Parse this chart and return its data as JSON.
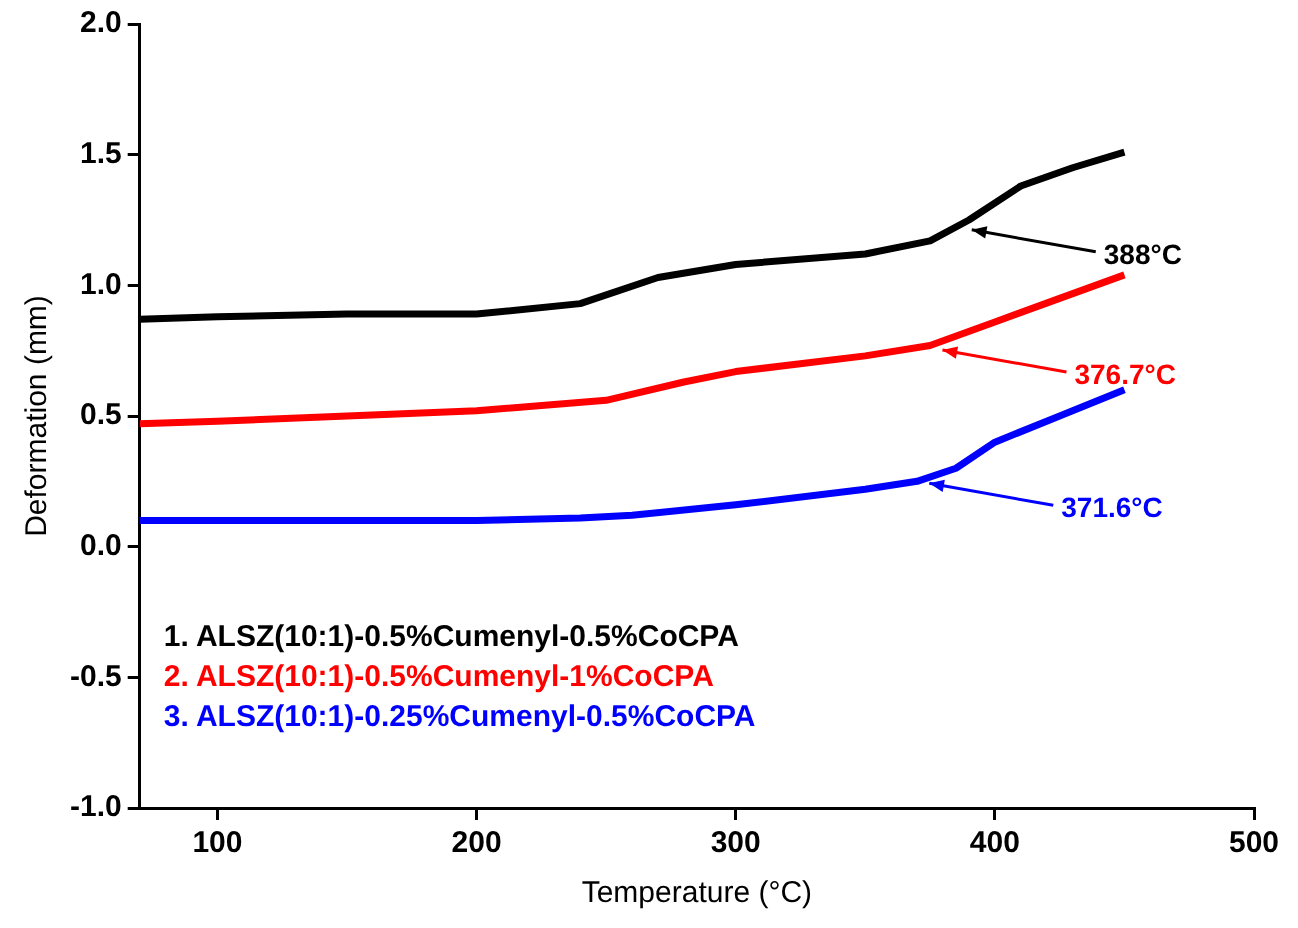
{
  "chart_data": {
    "type": "line",
    "xlabel": "Temperature (°C)",
    "ylabel": "Deformation (mm)",
    "xlim": [
      70,
      500
    ],
    "xticks": [
      100,
      200,
      300,
      400,
      500
    ],
    "ylim": [
      -1.0,
      2.0
    ],
    "yticks": [
      {
        "value": -1,
        "label": "-1.0"
      },
      {
        "value": -0.5,
        "label": "-0.5"
      },
      {
        "value": 0,
        "label": "0.0"
      },
      {
        "value": 0.5,
        "label": "0.5"
      },
      {
        "value": 1,
        "label": "1.0"
      },
      {
        "value": 1.5,
        "label": "1.5"
      },
      {
        "value": 2,
        "label": "2.0"
      }
    ],
    "grid": false,
    "legend": "bottom left",
    "marker": "none",
    "line_style": "solid",
    "series": [
      {
        "name": "1. ALSZ(10:1)-0.5%Cumenyl-0.5%CoCPA",
        "color": "#000000",
        "x": [
          70,
          100,
          150,
          200,
          240,
          270,
          300,
          350,
          375,
          390,
          410,
          430,
          450
        ],
        "values": [
          0.87,
          0.88,
          0.89,
          0.89,
          0.93,
          1.03,
          1.08,
          1.12,
          1.17,
          1.25,
          1.38,
          1.45,
          1.51
        ]
      },
      {
        "name": "2. ALSZ(10:1)-0.5%Cumenyl-1%CoCPA",
        "color": "#ff0000",
        "x": [
          70,
          100,
          150,
          200,
          250,
          280,
          300,
          350,
          375,
          400,
          425,
          450
        ],
        "values": [
          0.47,
          0.48,
          0.5,
          0.52,
          0.56,
          0.63,
          0.67,
          0.73,
          0.77,
          0.86,
          0.95,
          1.04
        ]
      },
      {
        "name": "3. ALSZ(10:1)-0.25%Cumenyl-0.5%CoCPA",
        "color": "#0000ff",
        "x": [
          70,
          100,
          150,
          200,
          240,
          260,
          300,
          350,
          370,
          385,
          400,
          425,
          450
        ],
        "values": [
          0.1,
          0.1,
          0.1,
          0.1,
          0.11,
          0.12,
          0.16,
          0.22,
          0.25,
          0.3,
          0.4,
          0.5,
          0.6
        ]
      }
    ],
    "annotations": [
      {
        "text": "388°C",
        "x": 388,
        "y": 1.22
      },
      {
        "text": "376.7°C",
        "x": 376.7,
        "y": 0.76
      },
      {
        "text": "371.6°C",
        "x": 371.6,
        "y": 0.25
      }
    ]
  }
}
